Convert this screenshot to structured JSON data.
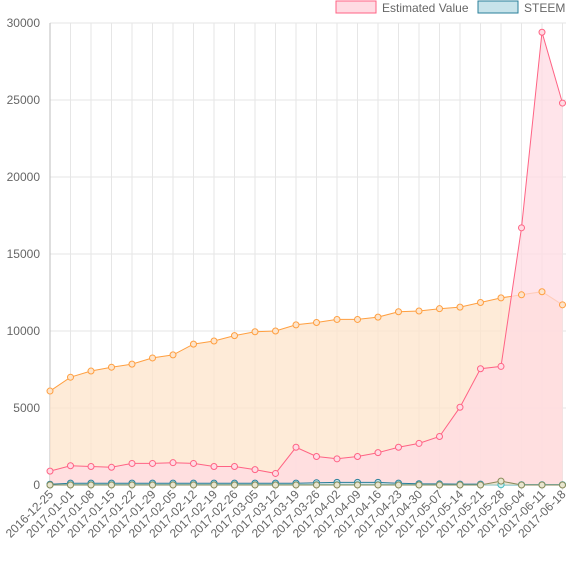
{
  "chart_data": {
    "type": "area",
    "categories": [
      "2016-12-25",
      "2017-01-01",
      "2017-01-08",
      "2017-01-15",
      "2017-01-22",
      "2017-01-29",
      "2017-02-05",
      "2017-02-12",
      "2017-02-19",
      "2017-02-26",
      "2017-03-05",
      "2017-03-12",
      "2017-03-19",
      "2017-03-26",
      "2017-04-02",
      "2017-04-09",
      "2017-04-16",
      "2017-04-23",
      "2017-04-30",
      "2017-05-07",
      "2017-05-14",
      "2017-05-21",
      "2017-05-28",
      "2017-06-04",
      "2017-06-11",
      "2017-06-18"
    ],
    "ylim": [
      0,
      30000
    ],
    "yticks": [
      0,
      5000,
      10000,
      15000,
      20000,
      25000,
      30000
    ],
    "legend": {
      "position": "top-right"
    },
    "grid": true,
    "series": [
      {
        "name": "Estimated Value",
        "line_color": "#ff6384",
        "fill_color": "#ffdbe3",
        "values": [
          900,
          1250,
          1200,
          1150,
          1400,
          1400,
          1450,
          1400,
          1200,
          1200,
          1000,
          750,
          2450,
          1850,
          1700,
          1850,
          2100,
          2450,
          2700,
          3150,
          5050,
          7550,
          7700,
          16700,
          29400,
          24800
        ]
      },
      {
        "name": "STEEM",
        "line_color": "#2a7f9a",
        "fill_color": "#c7e3ea",
        "values": [
          50,
          120,
          120,
          120,
          120,
          120,
          120,
          120,
          120,
          120,
          120,
          120,
          120,
          150,
          170,
          170,
          170,
          120,
          80,
          70,
          60,
          60,
          20,
          20,
          20,
          20
        ]
      },
      {
        "name": "",
        "line_color": "#ff9f40",
        "fill_color": "#fde4cb",
        "values": [
          6100,
          7000,
          7400,
          7650,
          7850,
          8250,
          8450,
          9150,
          9350,
          9700,
          9950,
          10000,
          10400,
          10550,
          10750,
          10750,
          10900,
          11250,
          11300,
          11450,
          11550,
          11850,
          12150,
          12350,
          12550,
          11700
        ]
      },
      {
        "name": "",
        "line_color": "#4bc0c0",
        "fill_color": "#d2f0f0",
        "values": [
          0,
          20,
          20,
          20,
          20,
          20,
          20,
          20,
          20,
          20,
          20,
          20,
          20,
          20,
          20,
          20,
          20,
          20,
          20,
          20,
          20,
          20,
          20,
          20,
          20,
          20
        ]
      },
      {
        "name": "",
        "line_color": "#8a8a5a",
        "fill_color": "#e8e6d0",
        "values": [
          0,
          0,
          0,
          0,
          0,
          0,
          0,
          0,
          0,
          0,
          0,
          0,
          0,
          0,
          0,
          0,
          0,
          0,
          0,
          0,
          0,
          0,
          250,
          0,
          0,
          0
        ]
      }
    ]
  }
}
